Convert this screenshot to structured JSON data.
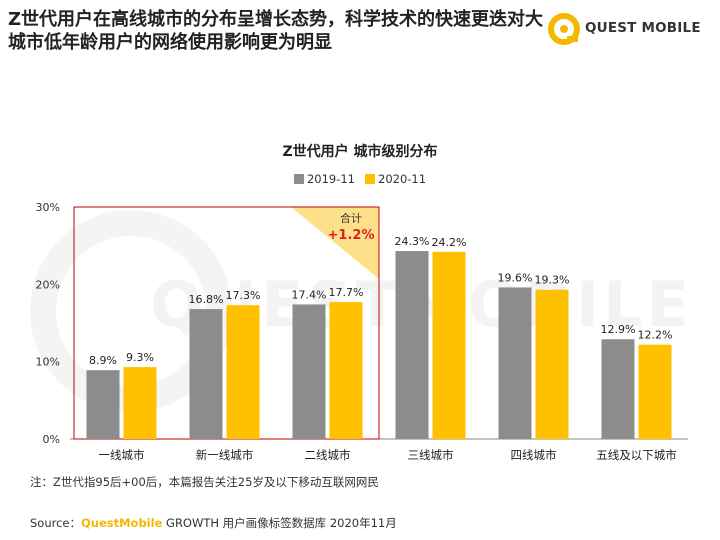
{
  "headline": "Z世代用户在高线城市的分布呈增长态势，科学技术的快速更迭对大城市低年龄用户的网络使用影响更为明显",
  "logo": {
    "text": "QUEST MOBILE",
    "icon": "quest-mobile-logo-icon",
    "color": "#f5b800"
  },
  "watermark": "QUESTMOBILE",
  "chart_data": {
    "type": "bar",
    "title": "Z世代用户 城市级别分布",
    "categories": [
      "一线城市",
      "新一线城市",
      "二线城市",
      "三线城市",
      "四线城市",
      "五线及以下城市"
    ],
    "series": [
      {
        "name": "2019-11",
        "values": [
          8.9,
          16.8,
          17.4,
          24.3,
          19.6,
          12.9
        ],
        "labels": [
          "8.9%",
          "16.8%",
          "17.4%",
          "24.3%",
          "19.6%",
          "12.9%"
        ],
        "color": "#8c8c8c"
      },
      {
        "name": "2020-11",
        "values": [
          9.3,
          17.3,
          17.7,
          24.2,
          19.3,
          12.2
        ],
        "labels": [
          "9.3%",
          "17.3%",
          "17.7%",
          "24.2%",
          "19.3%",
          "12.2%"
        ],
        "color": "#ffc000"
      }
    ],
    "ylim": [
      0,
      30
    ],
    "yticks": [
      "0%",
      "10%",
      "20%",
      "30%"
    ],
    "ytick_values": [
      0,
      10,
      20,
      30
    ],
    "legend_position": "top-center",
    "grid": false,
    "highlight": {
      "label": "合计",
      "value": "+1.2%",
      "value_color": "#e02020",
      "border_color": "#c00000",
      "triangle_color": "#ffe08a",
      "categories_covered": [
        "一线城市",
        "新一线城市",
        "二线城市"
      ]
    }
  },
  "footnote": "注：Z世代指95后+00后，本篇报告关注25岁及以下移动互联网网民",
  "source": {
    "prefix": "Source：",
    "brand": "QuestMobile",
    "rest": " GROWTH 用户画像标签数据库 2020年11月"
  }
}
